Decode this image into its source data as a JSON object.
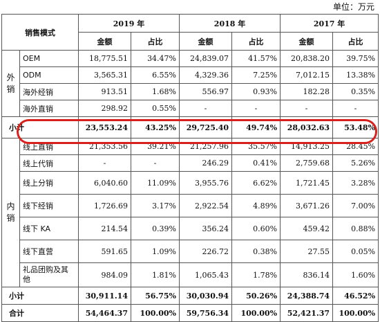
{
  "unit_label": "单位：万元",
  "header": {
    "mode": "销售模式",
    "years": [
      "2019 年",
      "2018 年",
      "2017 年"
    ],
    "amount": "金额",
    "ratio": "占比"
  },
  "overseas": {
    "group_label": "外销",
    "rows": [
      {
        "name": "OEM",
        "v": [
          "18,775.51",
          "34.47%",
          "24,839.07",
          "41.57%",
          "20,838.20",
          "39.75%"
        ]
      },
      {
        "name": "ODM",
        "v": [
          "3,565.31",
          "6.55%",
          "4,329.36",
          "7.25%",
          "7,012.15",
          "13.38%"
        ]
      },
      {
        "name": "海外经销",
        "v": [
          "913.51",
          "1.68%",
          "556.97",
          "0.93%",
          "182.28",
          "0.35%"
        ]
      },
      {
        "name": "海外直销",
        "v": [
          "298.92",
          "0.55%",
          "-",
          "-",
          "-",
          "-"
        ]
      }
    ],
    "subtotal": {
      "name": "小计",
      "v": [
        "23,553.24",
        "43.25%",
        "29,725.40",
        "49.74%",
        "28,032.63",
        "53.48%"
      ]
    }
  },
  "domestic": {
    "group_label": "内销",
    "rows": [
      {
        "name": "线上直销",
        "v": [
          "21,353.56",
          "39.21%",
          "21,257.96",
          "35.57%",
          "14,913.25",
          "28.45%"
        ]
      },
      {
        "name": "线上代销",
        "v": [
          "-",
          "-",
          "246.29",
          "0.41%",
          "2,759.68",
          "5.26%"
        ]
      },
      {
        "name": "线上分销",
        "v": [
          "6,040.60",
          "11.09%",
          "3,955.76",
          "6.62%",
          "1,721.45",
          "3.28%"
        ]
      },
      {
        "name": "线下经销",
        "v": [
          "1,726.69",
          "3.17%",
          "2,922.54",
          "4.89%",
          "3,671.26",
          "7.00%"
        ]
      },
      {
        "name": "线下 KA",
        "v": [
          "214.54",
          "0.39%",
          "356.24",
          "0.60%",
          "459.42",
          "0.88%"
        ]
      },
      {
        "name": "线下直营",
        "v": [
          "591.65",
          "1.09%",
          "226.72",
          "0.38%",
          "27.55",
          "0.05%"
        ]
      },
      {
        "name": "礼品团购及其他",
        "v": [
          "984.09",
          "1.81%",
          "1,065.43",
          "1.78%",
          "836.14",
          "1.60%"
        ]
      }
    ],
    "subtotal": {
      "name": "小计",
      "v": [
        "30,911.14",
        "56.75%",
        "30,030.94",
        "50.26%",
        "24,388.74",
        "46.52%"
      ]
    }
  },
  "total": {
    "name": "合计",
    "v": [
      "54,464.37",
      "100.00%",
      "59,756.34",
      "100.00%",
      "52,421.37",
      "100.00%"
    ]
  }
}
